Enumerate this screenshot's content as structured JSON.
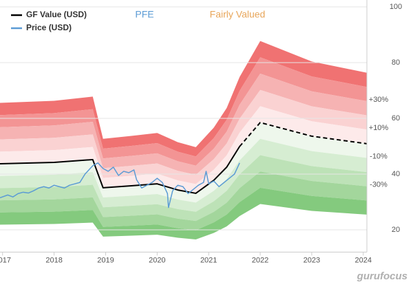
{
  "chart_data": {
    "type": "line",
    "annotations": [
      {
        "text": "PFE",
        "color": "#5b9bd5"
      },
      {
        "text": "Fairly Valued",
        "color": "#e8a65a"
      }
    ],
    "watermark": "gurufocus",
    "xlim": [
      2016.95,
      2024.07
    ],
    "xticks": [
      2017,
      2018,
      2019,
      2020,
      2021,
      2022,
      2023,
      2024
    ],
    "ylim": [
      12,
      100
    ],
    "yticks": [
      20,
      40,
      60,
      80,
      100
    ],
    "grid": true,
    "legend": "top-left",
    "series": [
      {
        "name": "GF Value (USD)",
        "color": "#000000",
        "x": [
          2016.95,
          2018.0,
          2018.75,
          2018.95,
          2019.5,
          2020.0,
          2020.4,
          2020.75,
          2021.1,
          2021.35,
          2021.6,
          2022.0,
          2023.0,
          2024.07
        ],
        "values": [
          43.7,
          44.2,
          45.2,
          35.1,
          35.8,
          36.5,
          34.3,
          33.1,
          37.8,
          42.5,
          49.9,
          58.5,
          53.6,
          50.9
        ],
        "dashed_after_x": 2021.6
      },
      {
        "name": "Price (USD)",
        "color": "#5b9bd5",
        "x": [
          2016.95,
          2017.1,
          2017.2,
          2017.3,
          2017.4,
          2017.5,
          2017.6,
          2017.7,
          2017.8,
          2017.9,
          2018.0,
          2018.1,
          2018.2,
          2018.3,
          2018.4,
          2018.5,
          2018.6,
          2018.7,
          2018.75,
          2018.85,
          2018.95,
          2019.05,
          2019.15,
          2019.25,
          2019.35,
          2019.45,
          2019.55,
          2019.6,
          2019.7,
          2019.8,
          2019.9,
          2020.0,
          2020.1,
          2020.2,
          2020.22,
          2020.3,
          2020.4,
          2020.5,
          2020.6,
          2020.7,
          2020.8,
          2020.9,
          2020.95,
          2021.0,
          2021.1,
          2021.2,
          2021.3,
          2021.4,
          2021.5,
          2021.55,
          2021.6
        ],
        "values": [
          31.5,
          32.5,
          31.8,
          33,
          33.5,
          33.2,
          34,
          35,
          35.5,
          35,
          36,
          35.5,
          35,
          36,
          36.5,
          37,
          40,
          42,
          43,
          44,
          42,
          41,
          42.5,
          39.5,
          41,
          40.5,
          41.5,
          38,
          35,
          36,
          37,
          38.5,
          37,
          33,
          28,
          34,
          36,
          35.5,
          33,
          34.5,
          36,
          37,
          41,
          36.5,
          37.5,
          35.5,
          37,
          38.5,
          40,
          42,
          44
        ]
      }
    ],
    "bands": [
      {
        "from": 40,
        "to": 50,
        "color": "#f07272"
      },
      {
        "from": 30,
        "to": 40,
        "color": "#f39494"
      },
      {
        "from": 20,
        "to": 30,
        "color": "#f6b3b3"
      },
      {
        "from": 10,
        "to": 20,
        "color": "#fad2d2"
      },
      {
        "from": 0,
        "to": 10,
        "color": "#fdeaea"
      },
      {
        "from": -10,
        "to": 0,
        "color": "#eef7ec"
      },
      {
        "from": -20,
        "to": -10,
        "color": "#d6edd2"
      },
      {
        "from": -30,
        "to": -20,
        "color": "#bde2b7"
      },
      {
        "from": -40,
        "to": -30,
        "color": "#a3d69c"
      },
      {
        "from": -50,
        "to": -40,
        "color": "#84ca7e"
      }
    ],
    "band_labels": [
      {
        "value": 30,
        "label": "+30%"
      },
      {
        "value": 10,
        "label": "+10%"
      },
      {
        "value": -10,
        "label": "-10%"
      },
      {
        "value": -30,
        "label": "-30%"
      }
    ]
  }
}
